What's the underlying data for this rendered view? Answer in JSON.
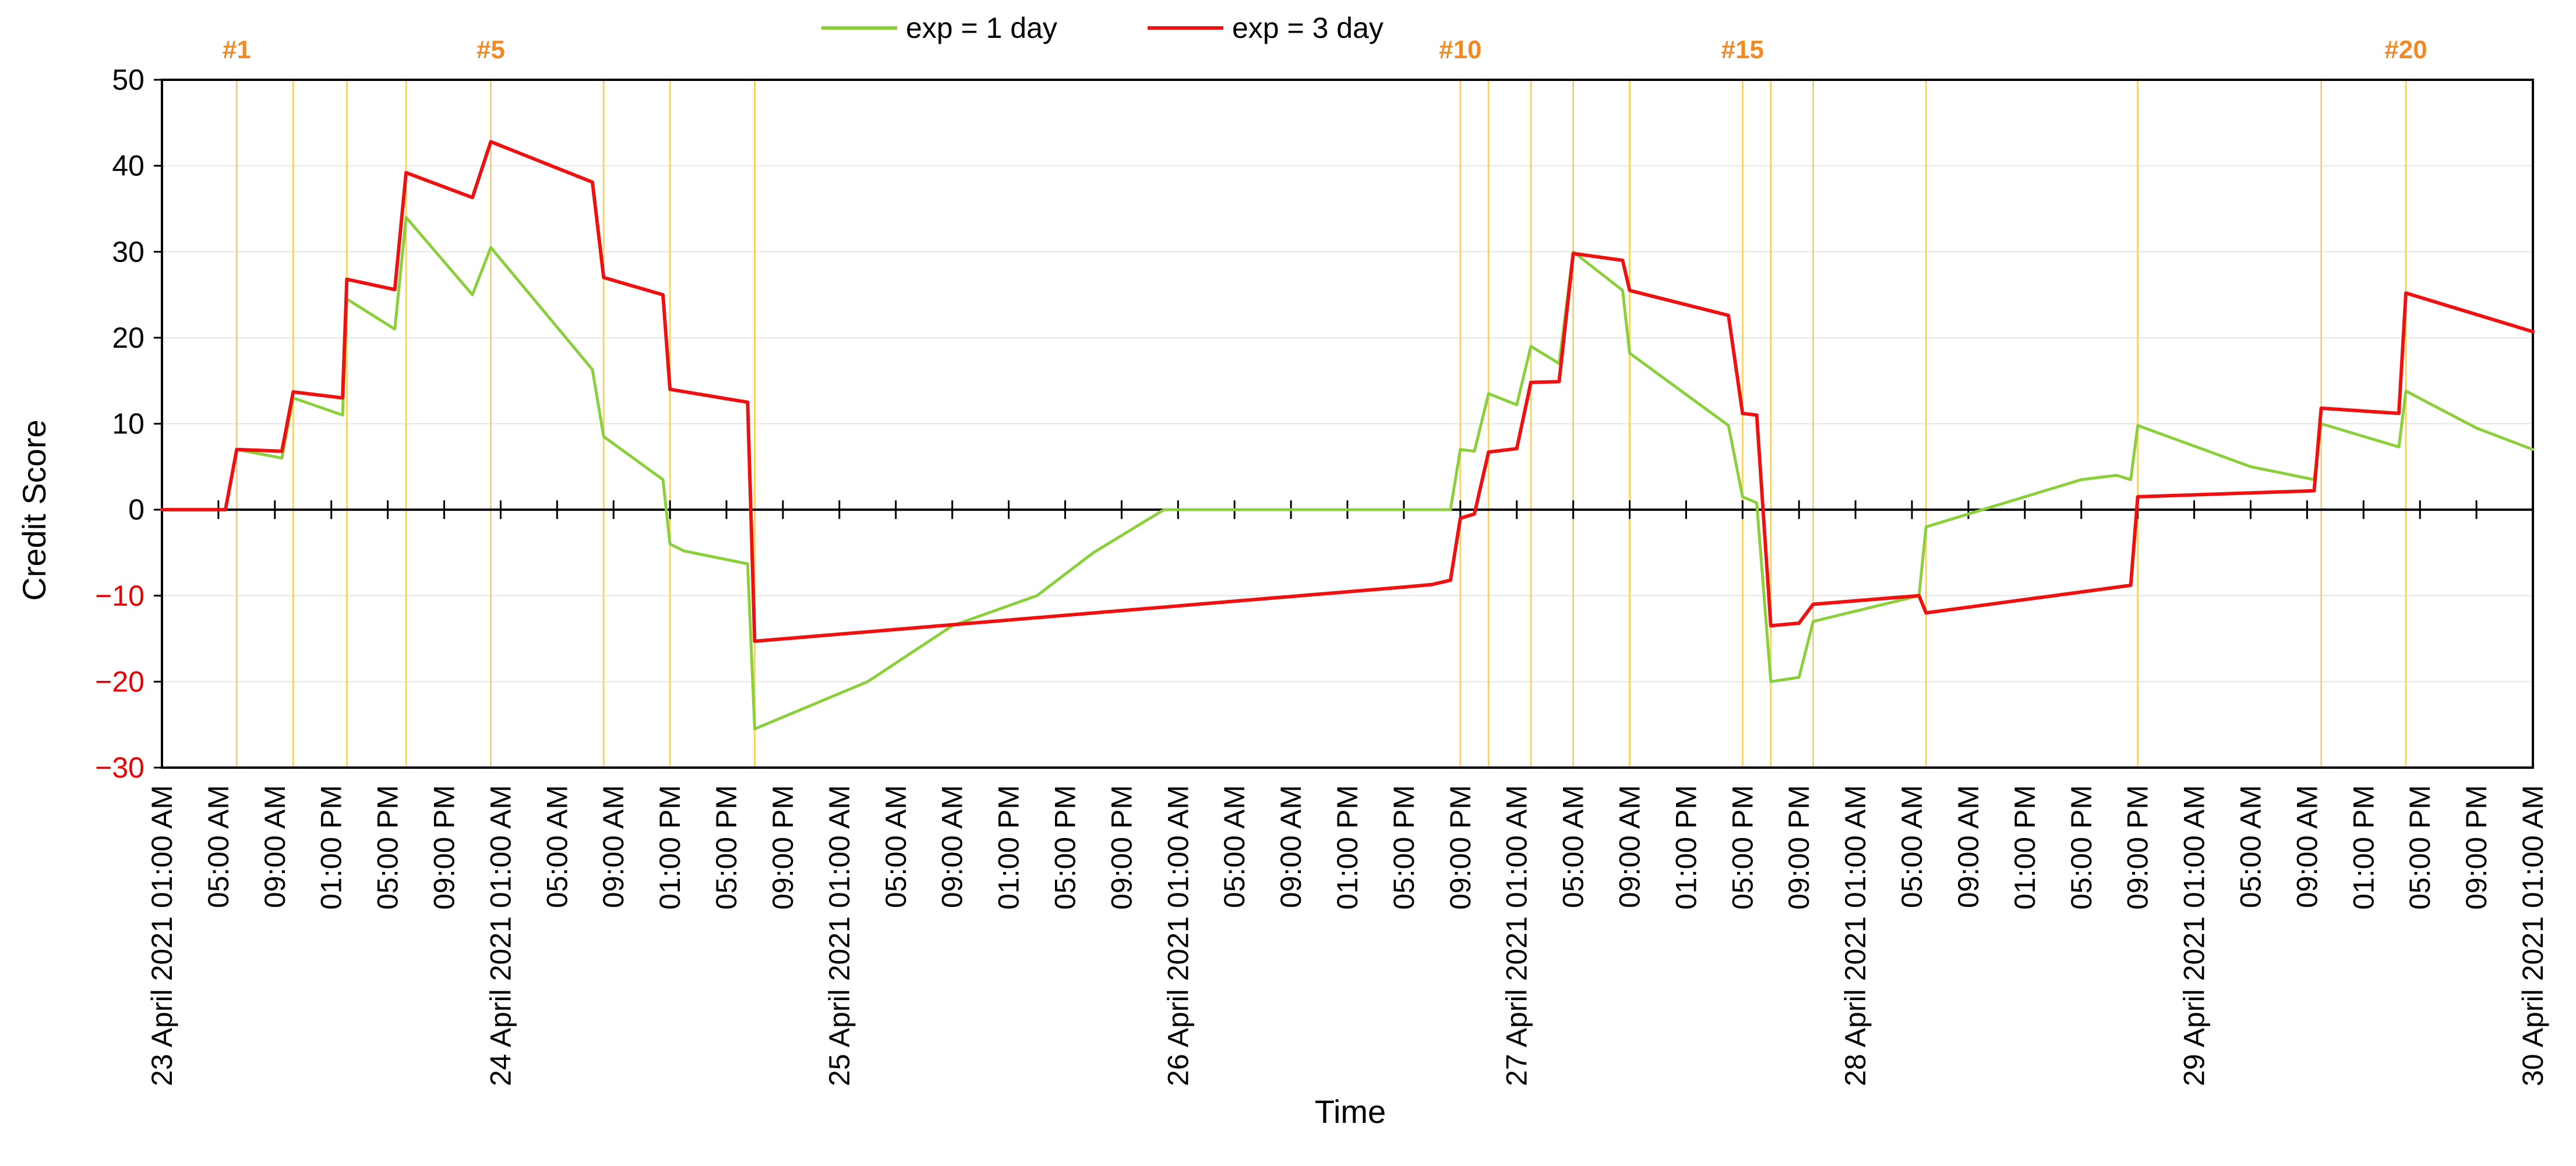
{
  "chart_data": {
    "type": "line",
    "xlabel": "Time",
    "ylabel": "Credit Score",
    "ylim": [
      -30,
      50
    ],
    "yticks": [
      -30,
      -20,
      -10,
      0,
      10,
      20,
      30,
      40,
      50
    ],
    "grid": true,
    "legend_position": "top-center",
    "x_tick_labels": [
      "23 April 2021 01:00 AM",
      "05:00 AM",
      "09:00 AM",
      "01:00 PM",
      "05:00 PM",
      "09:00 PM",
      "24 April 2021 01:00 AM",
      "05:00 AM",
      "09:00 AM",
      "01:00 PM",
      "05:00 PM",
      "09:00 PM",
      "25 April 2021 01:00 AM",
      "05:00 AM",
      "09:00 AM",
      "01:00 PM",
      "05:00 PM",
      "09:00 PM",
      "26 April 2021 01:00 AM",
      "05:00 AM",
      "09:00 AM",
      "01:00 PM",
      "05:00 PM",
      "09:00 PM",
      "27 April 2021 01:00 AM",
      "05:00 AM",
      "09:00 AM",
      "01:00 PM",
      "05:00 PM",
      "09:00 PM",
      "28 April 2021 01:00 AM",
      "05:00 AM",
      "09:00 AM",
      "01:00 PM",
      "05:00 PM",
      "09:00 PM",
      "29 April 2021 01:00 AM",
      "05:00 AM",
      "09:00 AM",
      "01:00 PM",
      "05:00 PM",
      "09:00 PM",
      "30 April 2021 01:00 AM"
    ],
    "x_unit": "hours after 23 April 2021 01:00 AM",
    "event_markers": [
      {
        "x": 5.3,
        "label": "#1"
      },
      {
        "x": 9.3,
        "label": ""
      },
      {
        "x": 13.1,
        "label": ""
      },
      {
        "x": 17.3,
        "label": ""
      },
      {
        "x": 23.3,
        "label": "#5"
      },
      {
        "x": 31.3,
        "label": ""
      },
      {
        "x": 36.0,
        "label": ""
      },
      {
        "x": 42.0,
        "label": ""
      },
      {
        "x": 92.0,
        "label": "#10"
      },
      {
        "x": 94.0,
        "label": ""
      },
      {
        "x": 97.0,
        "label": ""
      },
      {
        "x": 100.0,
        "label": ""
      },
      {
        "x": 104.0,
        "label": ""
      },
      {
        "x": 112.0,
        "label": "#15"
      },
      {
        "x": 114.0,
        "label": ""
      },
      {
        "x": 117.0,
        "label": ""
      },
      {
        "x": 125.0,
        "label": ""
      },
      {
        "x": 140.0,
        "label": ""
      },
      {
        "x": 153.0,
        "label": ""
      },
      {
        "x": 159.0,
        "label": "#20"
      }
    ],
    "series": [
      {
        "name": "exp = 1 day",
        "color": "#8ccf3c",
        "x": [
          0,
          4.5,
          5.3,
          8.5,
          9.3,
          12.8,
          13.1,
          16.5,
          17.3,
          22.0,
          23.3,
          30.5,
          31.3,
          35.5,
          36.0,
          37.0,
          41.5,
          42.0,
          50,
          56,
          62,
          66,
          71,
          80,
          88,
          91.3,
          92.0,
          93.0,
          94.0,
          96.0,
          97.0,
          99.0,
          100.0,
          103.5,
          104.0,
          111.0,
          112.0,
          113.0,
          114.0,
          116.0,
          117.0,
          124.5,
          125.0,
          130,
          136,
          138.5,
          139.5,
          140.0,
          148,
          152.5,
          153.0,
          158.5,
          159.0,
          164,
          168
        ],
        "y": [
          0,
          0,
          7,
          6,
          13,
          11,
          24.5,
          21,
          34,
          25,
          30.5,
          16.3,
          8.5,
          3.5,
          -4,
          -4.8,
          -6.3,
          -25.5,
          -20,
          -13.5,
          -10,
          -5,
          0,
          0,
          0,
          0,
          7,
          6.8,
          13.5,
          12.2,
          19,
          17,
          30,
          25.5,
          18.2,
          9.8,
          1.5,
          0.8,
          -20,
          -19.5,
          -13,
          -10,
          -2,
          0.5,
          3.5,
          4,
          3.5,
          9.8,
          5,
          3.5,
          10,
          7.3,
          13.8,
          9.5,
          7
        ]
      },
      {
        "name": "exp = 3 day",
        "color": "#ee1111",
        "x": [
          0,
          4.5,
          5.3,
          8.5,
          9.3,
          12.8,
          13.1,
          16.5,
          17.3,
          22.0,
          23.3,
          30.5,
          31.3,
          35.5,
          36.0,
          41.5,
          42.0,
          88,
          90,
          91.3,
          92.0,
          93.0,
          94.0,
          96.0,
          97.0,
          99.0,
          100.0,
          103.5,
          104.0,
          111.0,
          112.0,
          113.0,
          114.0,
          116.0,
          117.0,
          124.5,
          125.0,
          139.5,
          140.0,
          152.5,
          153.0,
          158.5,
          159.0,
          168
        ],
        "y": [
          0,
          0,
          7,
          6.8,
          13.7,
          13,
          26.8,
          25.6,
          39.2,
          36.3,
          42.8,
          38.1,
          27,
          25,
          14,
          12.5,
          -15.3,
          -9,
          -8.7,
          -8.2,
          -1,
          -0.5,
          6.7,
          7.1,
          14.8,
          14.9,
          29.8,
          29,
          25.5,
          22.6,
          11.2,
          11,
          -13.5,
          -13.2,
          -11,
          -10,
          -12,
          -8.8,
          1.5,
          2.2,
          11.8,
          11.2,
          25.2,
          20.7
        ]
      }
    ]
  }
}
